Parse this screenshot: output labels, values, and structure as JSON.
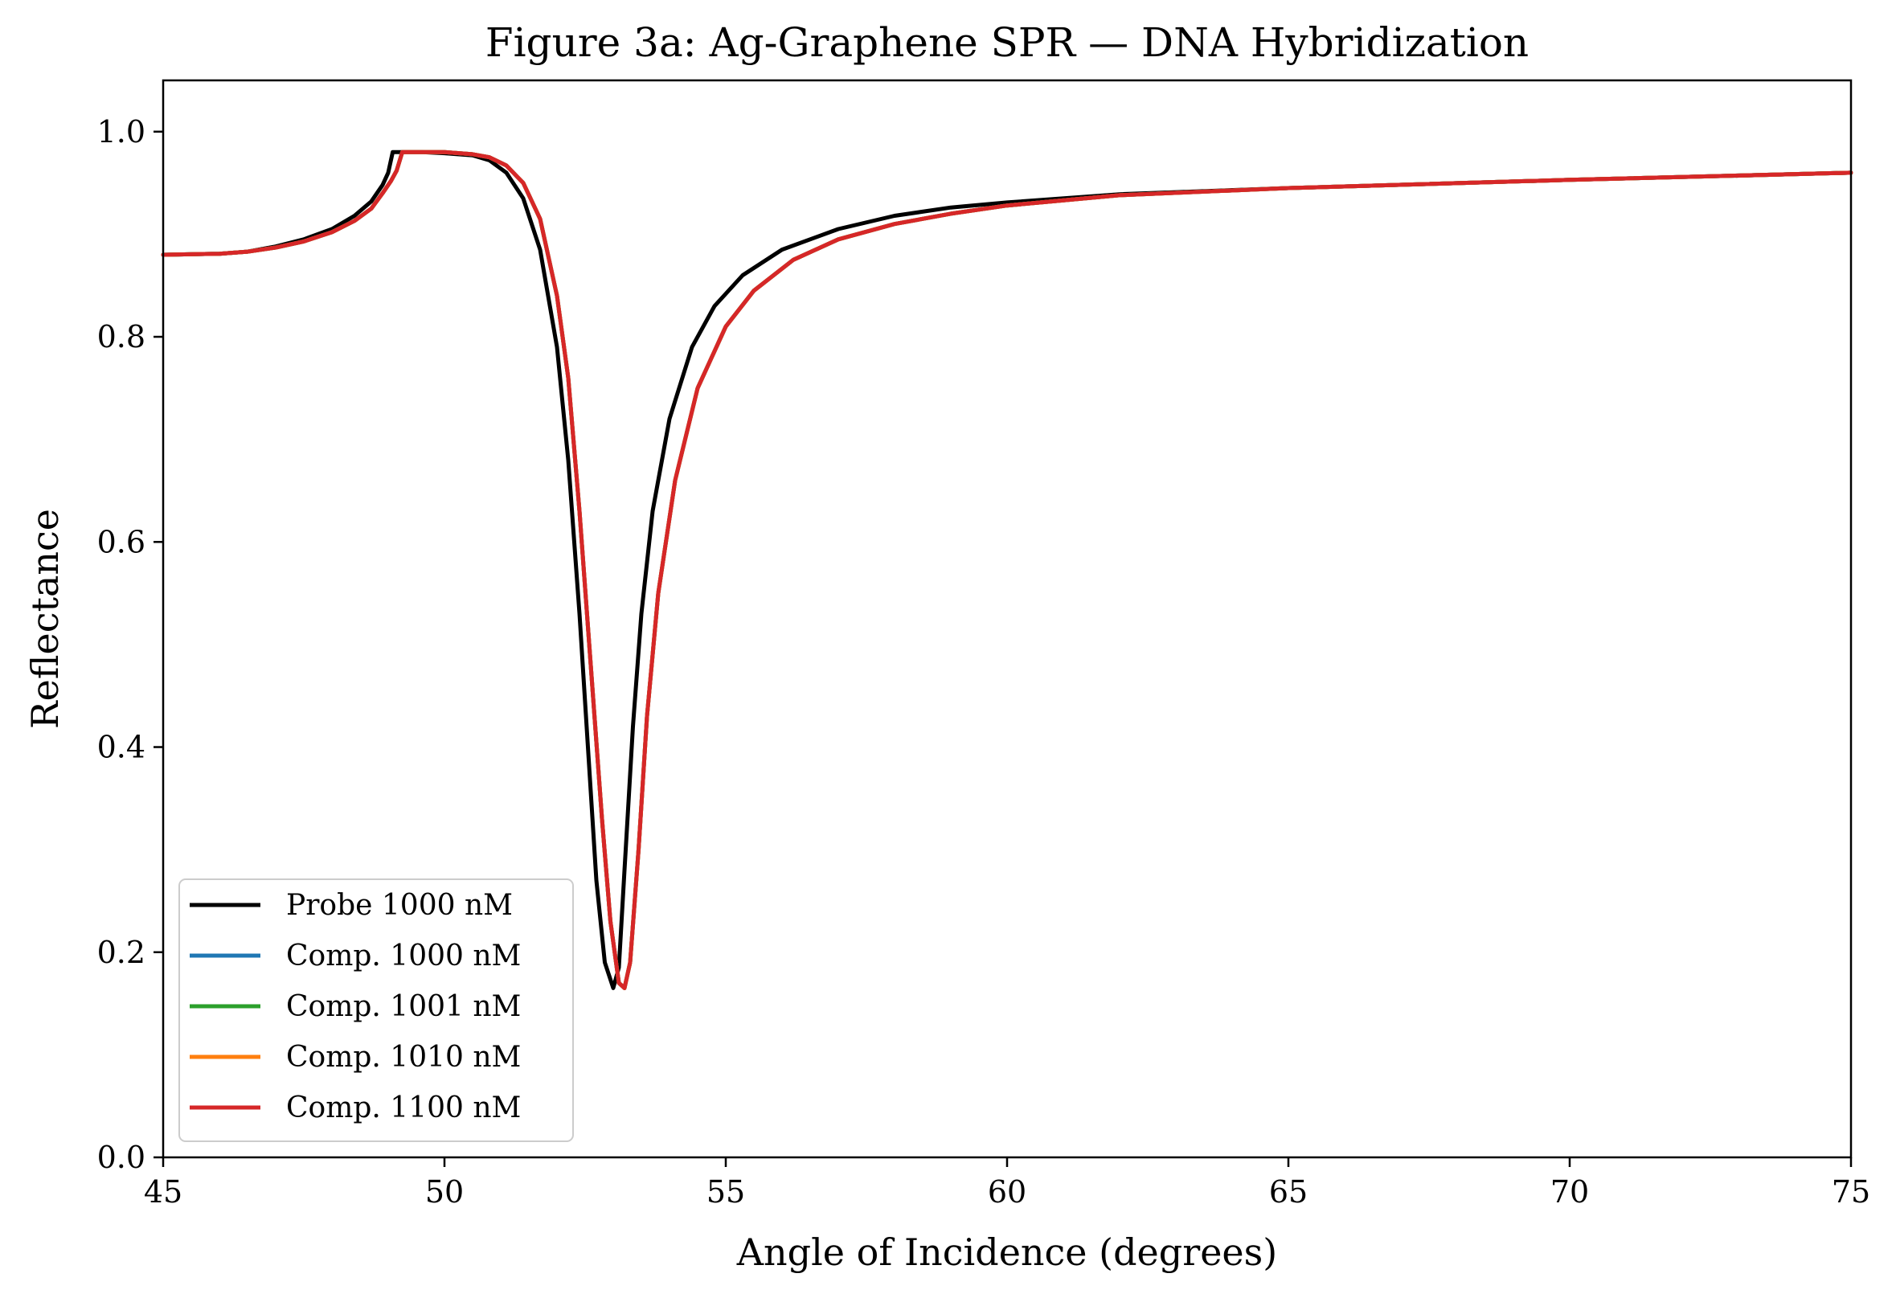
{
  "chart_data": {
    "type": "line",
    "title": "Figure 3a: Ag-Graphene SPR — DNA Hybridization",
    "xlabel": "Angle of Incidence (degrees)",
    "ylabel": "Reflectance",
    "xlim": [
      45,
      75
    ],
    "ylim": [
      0,
      1.05
    ],
    "xticks": [
      45,
      50,
      55,
      60,
      65,
      70,
      75
    ],
    "xtick_labels": [
      "45",
      "50",
      "55",
      "60",
      "65",
      "70",
      "75"
    ],
    "yticks": [
      0,
      0.2,
      0.4,
      0.6,
      0.8,
      1.0
    ],
    "ytick_labels": [
      "0.0",
      "0.2",
      "0.4",
      "0.6",
      "0.8",
      "1.0"
    ],
    "grid": false,
    "legend_position": "lower-left",
    "series": [
      {
        "name": "Probe 1000 nM",
        "color": "#000000",
        "x": [
          45,
          46,
          46.5,
          47,
          47.5,
          48,
          48.4,
          48.7,
          48.9,
          49.0,
          49.08,
          49.2,
          49.6,
          50,
          50.5,
          50.8,
          51.1,
          51.4,
          51.7,
          52.0,
          52.2,
          52.4,
          52.55,
          52.7,
          52.85,
          53.0,
          53.1,
          53.2,
          53.35,
          53.5,
          53.7,
          54.0,
          54.4,
          54.8,
          55.3,
          56.0,
          57.0,
          58.0,
          59.0,
          60.0,
          62.0,
          65.0,
          70.0,
          75.0
        ],
        "y": [
          0.88,
          0.881,
          0.883,
          0.888,
          0.895,
          0.905,
          0.918,
          0.932,
          0.948,
          0.96,
          0.98,
          0.98,
          0.98,
          0.979,
          0.977,
          0.972,
          0.96,
          0.935,
          0.885,
          0.79,
          0.68,
          0.53,
          0.4,
          0.27,
          0.19,
          0.165,
          0.185,
          0.28,
          0.42,
          0.53,
          0.63,
          0.72,
          0.79,
          0.83,
          0.86,
          0.885,
          0.905,
          0.918,
          0.926,
          0.931,
          0.939,
          0.945,
          0.953,
          0.96
        ]
      },
      {
        "name": "Comp. 1000 nM",
        "color": "#1f77b4",
        "x": [
          45,
          46,
          46.5,
          47,
          47.5,
          48,
          48.4,
          48.7,
          48.9,
          49.05,
          49.15,
          49.25,
          49.6,
          50,
          50.5,
          50.8,
          51.1,
          51.4,
          51.7,
          52.0,
          52.2,
          52.4,
          52.6,
          52.8,
          52.95,
          53.1,
          53.2,
          53.3,
          53.45,
          53.6,
          53.8,
          54.1,
          54.5,
          55.0,
          55.5,
          56.2,
          57.0,
          58.0,
          59.0,
          60.0,
          62.0,
          65.0,
          70.0,
          75.0
        ],
        "y": [
          0.88,
          0.881,
          0.883,
          0.887,
          0.893,
          0.902,
          0.913,
          0.925,
          0.94,
          0.952,
          0.962,
          0.98,
          0.98,
          0.98,
          0.978,
          0.975,
          0.967,
          0.95,
          0.915,
          0.84,
          0.76,
          0.63,
          0.48,
          0.33,
          0.23,
          0.17,
          0.165,
          0.19,
          0.3,
          0.43,
          0.55,
          0.66,
          0.75,
          0.81,
          0.845,
          0.875,
          0.895,
          0.91,
          0.92,
          0.928,
          0.938,
          0.945,
          0.953,
          0.96
        ]
      },
      {
        "name": "Comp. 1001 nM",
        "color": "#2ca02c",
        "x": [
          45,
          46,
          46.5,
          47,
          47.5,
          48,
          48.4,
          48.7,
          48.9,
          49.05,
          49.15,
          49.25,
          49.6,
          50,
          50.5,
          50.8,
          51.1,
          51.4,
          51.7,
          52.0,
          52.2,
          52.4,
          52.6,
          52.8,
          52.95,
          53.1,
          53.2,
          53.3,
          53.45,
          53.6,
          53.8,
          54.1,
          54.5,
          55.0,
          55.5,
          56.2,
          57.0,
          58.0,
          59.0,
          60.0,
          62.0,
          65.0,
          70.0,
          75.0
        ],
        "y": [
          0.88,
          0.881,
          0.883,
          0.887,
          0.893,
          0.902,
          0.913,
          0.925,
          0.94,
          0.952,
          0.962,
          0.98,
          0.98,
          0.98,
          0.978,
          0.975,
          0.967,
          0.95,
          0.915,
          0.84,
          0.76,
          0.63,
          0.48,
          0.33,
          0.23,
          0.17,
          0.165,
          0.19,
          0.3,
          0.43,
          0.55,
          0.66,
          0.75,
          0.81,
          0.845,
          0.875,
          0.895,
          0.91,
          0.92,
          0.928,
          0.938,
          0.945,
          0.953,
          0.96
        ]
      },
      {
        "name": "Comp. 1010 nM",
        "color": "#ff7f0e",
        "x": [
          45,
          46,
          46.5,
          47,
          47.5,
          48,
          48.4,
          48.7,
          48.9,
          49.05,
          49.15,
          49.25,
          49.6,
          50,
          50.5,
          50.8,
          51.1,
          51.4,
          51.7,
          52.0,
          52.2,
          52.4,
          52.6,
          52.8,
          52.95,
          53.1,
          53.2,
          53.3,
          53.45,
          53.6,
          53.8,
          54.1,
          54.5,
          55.0,
          55.5,
          56.2,
          57.0,
          58.0,
          59.0,
          60.0,
          62.0,
          65.0,
          70.0,
          75.0
        ],
        "y": [
          0.88,
          0.881,
          0.883,
          0.887,
          0.893,
          0.902,
          0.913,
          0.925,
          0.94,
          0.952,
          0.962,
          0.98,
          0.98,
          0.98,
          0.978,
          0.975,
          0.967,
          0.95,
          0.915,
          0.84,
          0.76,
          0.63,
          0.48,
          0.33,
          0.23,
          0.17,
          0.165,
          0.19,
          0.3,
          0.43,
          0.55,
          0.66,
          0.75,
          0.81,
          0.845,
          0.875,
          0.895,
          0.91,
          0.92,
          0.928,
          0.938,
          0.945,
          0.953,
          0.96
        ]
      },
      {
        "name": "Comp. 1100 nM",
        "color": "#d62728",
        "x": [
          45,
          46,
          46.5,
          47,
          47.5,
          48,
          48.4,
          48.7,
          48.9,
          49.05,
          49.15,
          49.25,
          49.6,
          50,
          50.5,
          50.8,
          51.1,
          51.4,
          51.7,
          52.0,
          52.2,
          52.4,
          52.6,
          52.8,
          52.95,
          53.1,
          53.2,
          53.3,
          53.45,
          53.6,
          53.8,
          54.1,
          54.5,
          55.0,
          55.5,
          56.2,
          57.0,
          58.0,
          59.0,
          60.0,
          62.0,
          65.0,
          70.0,
          75.0
        ],
        "y": [
          0.88,
          0.881,
          0.883,
          0.887,
          0.893,
          0.902,
          0.913,
          0.925,
          0.94,
          0.952,
          0.962,
          0.98,
          0.98,
          0.98,
          0.978,
          0.975,
          0.967,
          0.95,
          0.915,
          0.84,
          0.76,
          0.63,
          0.48,
          0.33,
          0.23,
          0.17,
          0.165,
          0.19,
          0.3,
          0.43,
          0.55,
          0.66,
          0.75,
          0.81,
          0.845,
          0.875,
          0.895,
          0.91,
          0.92,
          0.928,
          0.938,
          0.945,
          0.953,
          0.96
        ]
      }
    ]
  }
}
